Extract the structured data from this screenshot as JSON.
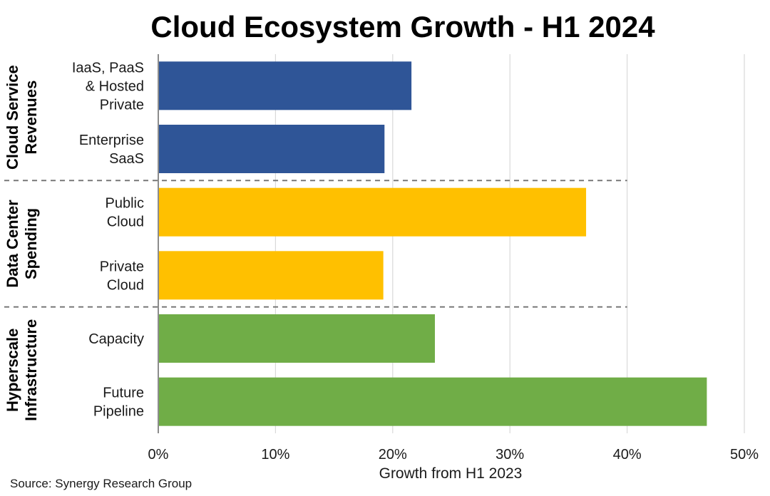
{
  "chart_data": {
    "type": "bar",
    "orientation": "horizontal",
    "title": "Cloud Ecosystem Growth - H1 2024",
    "xlabel": "Growth from H1 2023",
    "ylabel": "",
    "xlim": [
      0,
      50
    ],
    "xticks": [
      0,
      10,
      20,
      30,
      40,
      50
    ],
    "tick_suffix": "%",
    "grid": "vertical",
    "groups": [
      {
        "name_lines": [
          "Cloud Service",
          "Revenues"
        ],
        "color": "#2f5597",
        "bars": [
          {
            "label_lines": [
              "IaaS, PaaS",
              "& Hosted",
              "Private"
            ],
            "value": 21.6
          },
          {
            "label_lines": [
              "Enterprise",
              "SaaS"
            ],
            "value": 19.3
          }
        ]
      },
      {
        "name_lines": [
          "Data Center",
          "Spending"
        ],
        "color": "#ffc000",
        "bars": [
          {
            "label_lines": [
              "Public",
              "Cloud"
            ],
            "value": 36.5
          },
          {
            "label_lines": [
              "Private",
              "Cloud"
            ],
            "value": 19.2
          }
        ]
      },
      {
        "name_lines": [
          "Hyperscale",
          "Infrastructure"
        ],
        "color": "#70ad47",
        "bars": [
          {
            "label_lines": [
              "Capacity"
            ],
            "value": 23.6
          },
          {
            "label_lines": [
              "Future",
              "Pipeline"
            ],
            "value": 46.8
          }
        ]
      }
    ],
    "source": "Source: Synergy Research Group"
  }
}
